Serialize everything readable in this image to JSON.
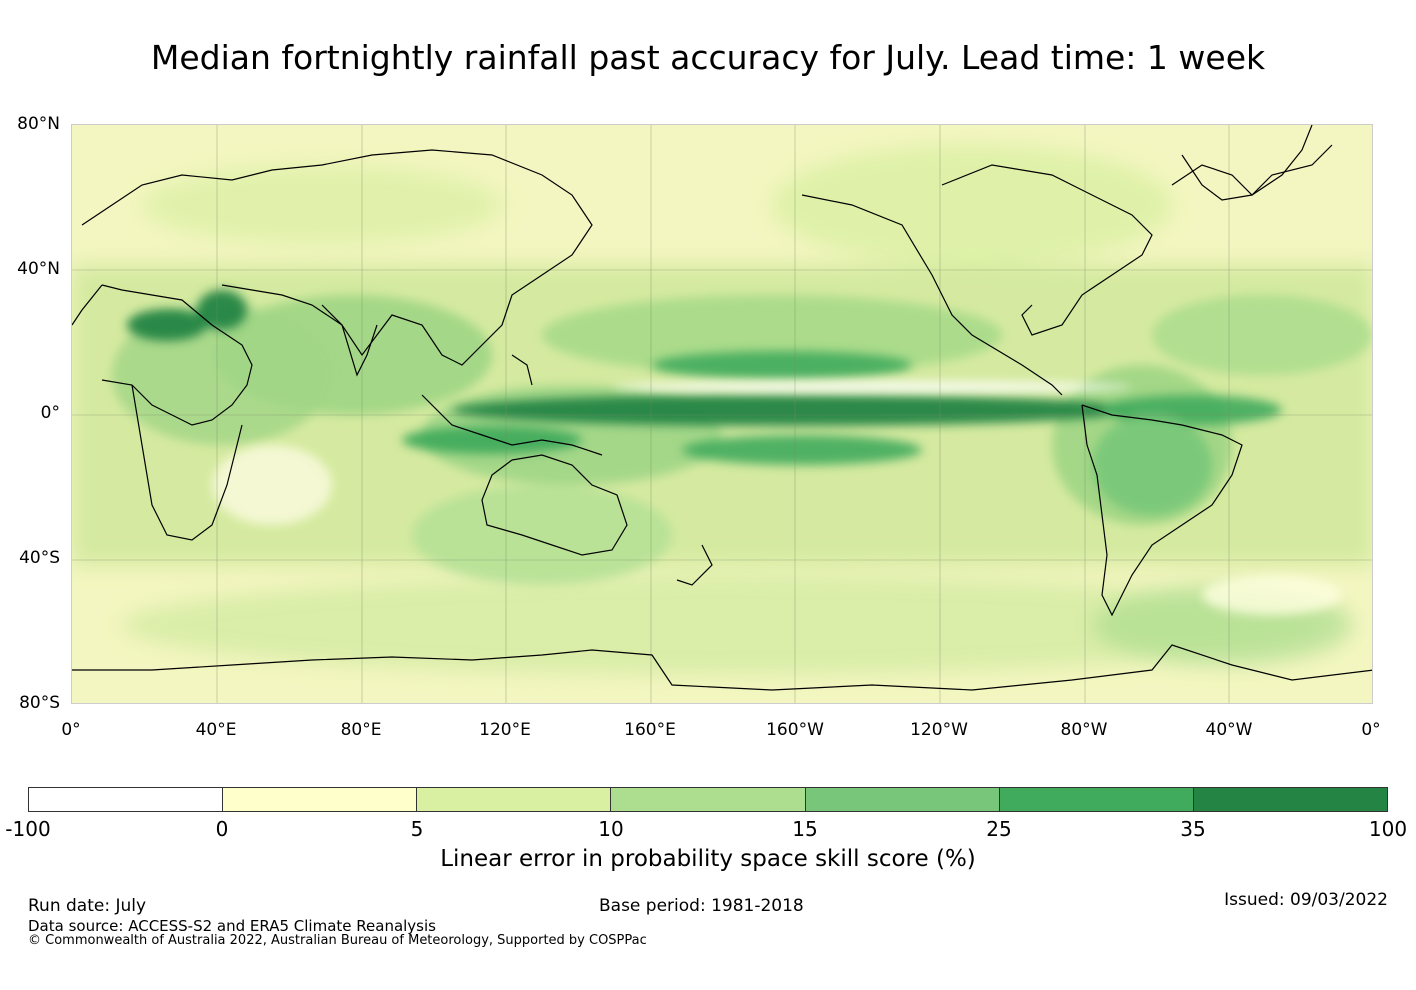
{
  "title": "Median fortnightly rainfall past accuracy for July. Lead time: 1 week",
  "map": {
    "lat_labels": [
      "80°N",
      "40°N",
      "0°",
      "40°S",
      "80°S"
    ],
    "lon_labels": [
      "0°",
      "40°E",
      "80°E",
      "120°E",
      "160°E",
      "160°W",
      "120°W",
      "80°W",
      "40°W",
      "0°"
    ],
    "legend": {
      "bins": [
        {
          "from": "-100",
          "to": "0",
          "color": "#ffffff"
        },
        {
          "from": "0",
          "to": "5",
          "color": "#ffffcc"
        },
        {
          "from": "5",
          "to": "10",
          "color": "#d9f0a3"
        },
        {
          "from": "10",
          "to": "15",
          "color": "#addd8e"
        },
        {
          "from": "15",
          "to": "25",
          "color": "#78c679"
        },
        {
          "from": "25",
          "to": "35",
          "color": "#41ab5d"
        },
        {
          "from": "35",
          "to": "100",
          "color": "#238443"
        }
      ],
      "tick_labels": [
        "-100",
        "0",
        "5",
        "10",
        "15",
        "25",
        "35",
        "100"
      ],
      "label": "Linear error in probability space skill score (%)"
    }
  },
  "footer": {
    "run_date": "Run date: July",
    "base_period": "Base period: 1981-2018",
    "issued": "Issued: 09/03/2022",
    "data_source": "Data source: ACCESS-S2 and ERA5 Climate Reanalysis",
    "copyright": "© Commonwealth of Australia 2022, Australian Bureau of Meteorology, Supported by COSPPac"
  }
}
